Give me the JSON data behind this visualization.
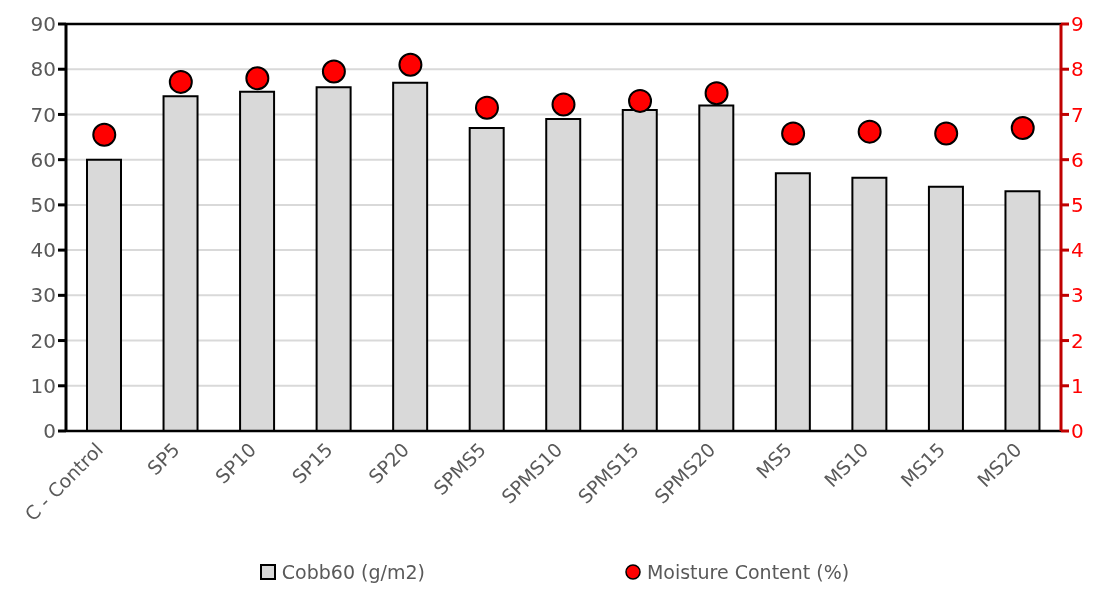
{
  "chart_data": {
    "type": "bar",
    "categories": [
      "C - Control",
      "SP5",
      "SP10",
      "SP15",
      "SP20",
      "SPMS5",
      "SPMS10",
      "SPMS15",
      "SPMS20",
      "MS5",
      "MS10",
      "MS15",
      "MS20"
    ],
    "series": [
      {
        "name": "Cobb60 (g/m2)",
        "type": "bar",
        "color": "#d9d9d9",
        "values": [
          60,
          74,
          75,
          76,
          77,
          67,
          69,
          71,
          72,
          57,
          56,
          54,
          53
        ]
      },
      {
        "name": "Moisture Content (%)",
        "type": "scatter",
        "axis": "y2",
        "color": "#ff0000",
        "marker": "circle",
        "x": [
          "C - Control",
          "SP5",
          "SP10",
          "SP15",
          "SP20",
          "SPMS5",
          "SPMS10",
          "SPMS15",
          "SPMS20",
          "MS5",
          "MS10",
          "MS15",
          "MS20"
        ],
        "values": [
          6.55,
          7.72,
          7.8,
          7.95,
          8.1,
          7.15,
          7.22,
          7.3,
          7.47,
          6.58,
          6.62,
          6.58,
          6.7
        ]
      }
    ],
    "ylim": [
      0,
      90
    ],
    "yticks": [
      0,
      10,
      20,
      30,
      40,
      50,
      60,
      70,
      80,
      90
    ],
    "y2lim": [
      0,
      9
    ],
    "y2ticks": [
      0,
      1,
      2,
      3,
      4,
      5,
      6,
      7,
      8,
      9
    ],
    "grid": "y",
    "legend": "bottom"
  }
}
